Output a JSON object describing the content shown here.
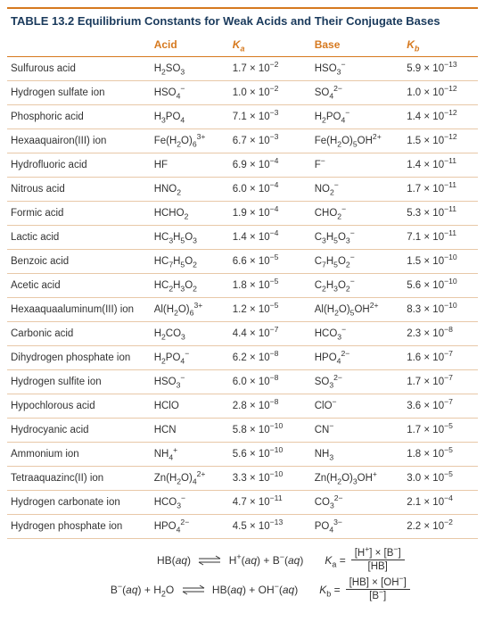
{
  "title_label": "TABLE 13.2",
  "title_text": "Equilibrium Constants for Weak Acids and Their Conjugate Bases",
  "headers": {
    "name": "",
    "acid": "Acid",
    "ka": "K",
    "ka_sub": "a",
    "base": "Base",
    "kb": "K",
    "kb_sub": "b"
  },
  "rows": [
    {
      "name": "Sulfurous acid",
      "acid": "H<sub>2</sub>SO<sub>3</sub>",
      "ka": "1.7 × 10<sup>−2</sup>",
      "base": "HSO<sub>3</sub><sup>−</sup>",
      "kb": "5.9 × 10<sup>−13</sup>"
    },
    {
      "name": "Hydrogen sulfate ion",
      "acid": "HSO<sub>4</sub><sup>−</sup>",
      "ka": "1.0 × 10<sup>−2</sup>",
      "base": "SO<sub>4</sub><sup>2−</sup>",
      "kb": "1.0 × 10<sup>−12</sup>"
    },
    {
      "name": "Phosphoric acid",
      "acid": "H<sub>3</sub>PO<sub>4</sub>",
      "ka": "7.1 × 10<sup>−3</sup>",
      "base": "H<sub>2</sub>PO<sub>4</sub><sup>−</sup>",
      "kb": "1.4 × 10<sup>−12</sup>"
    },
    {
      "name": "Hexaaquairon(III) ion",
      "acid": "Fe(H<sub>2</sub>O)<sub>6</sub><sup>3+</sup>",
      "ka": "6.7 × 10<sup>−3</sup>",
      "base": "Fe(H<sub>2</sub>O)<sub>5</sub>OH<sup>2+</sup>",
      "kb": "1.5 × 10<sup>−12</sup>"
    },
    {
      "name": "Hydrofluoric acid",
      "acid": "HF",
      "ka": "6.9 × 10<sup>−4</sup>",
      "base": "F<sup>−</sup>",
      "kb": "1.4 × 10<sup>−11</sup>"
    },
    {
      "name": "Nitrous acid",
      "acid": "HNO<sub>2</sub>",
      "ka": "6.0 × 10<sup>−4</sup>",
      "base": "NO<sub>2</sub><sup>−</sup>",
      "kb": "1.7 × 10<sup>−11</sup>"
    },
    {
      "name": "Formic acid",
      "acid": "HCHO<sub>2</sub>",
      "ka": "1.9 × 10<sup>−4</sup>",
      "base": "CHO<sub>2</sub><sup>−</sup>",
      "kb": "5.3 × 10<sup>−11</sup>"
    },
    {
      "name": "Lactic acid",
      "acid": "HC<sub>3</sub>H<sub>5</sub>O<sub>3</sub>",
      "ka": "1.4 × 10<sup>−4</sup>",
      "base": "C<sub>3</sub>H<sub>5</sub>O<sub>3</sub><sup>−</sup>",
      "kb": "7.1 × 10<sup>−11</sup>"
    },
    {
      "name": "Benzoic acid",
      "acid": "HC<sub>7</sub>H<sub>5</sub>O<sub>2</sub>",
      "ka": "6.6 × 10<sup>−5</sup>",
      "base": "C<sub>7</sub>H<sub>5</sub>O<sub>2</sub><sup>−</sup>",
      "kb": "1.5 × 10<sup>−10</sup>"
    },
    {
      "name": "Acetic acid",
      "acid": "HC<sub>2</sub>H<sub>3</sub>O<sub>2</sub>",
      "ka": "1.8 × 10<sup>−5</sup>",
      "base": "C<sub>2</sub>H<sub>3</sub>O<sub>2</sub><sup>−</sup>",
      "kb": "5.6 × 10<sup>−10</sup>"
    },
    {
      "name": "Hexaaquaaluminum(III) ion",
      "acid": "Al(H<sub>2</sub>O)<sub>6</sub><sup>3+</sup>",
      "ka": "1.2 × 10<sup>−5</sup>",
      "base": "Al(H<sub>2</sub>O)<sub>5</sub>OH<sup>2+</sup>",
      "kb": "8.3 × 10<sup>−10</sup>"
    },
    {
      "name": "Carbonic acid",
      "acid": "H<sub>2</sub>CO<sub>3</sub>",
      "ka": "4.4 × 10<sup>−7</sup>",
      "base": "HCO<sub>3</sub><sup>−</sup>",
      "kb": "2.3 × 10<sup>−8</sup>"
    },
    {
      "name": "Dihydrogen phosphate ion",
      "acid": "H<sub>2</sub>PO<sub>4</sub><sup>−</sup>",
      "ka": "6.2 × 10<sup>−8</sup>",
      "base": "HPO<sub>4</sub><sup>2−</sup>",
      "kb": "1.6 × 10<sup>−7</sup>"
    },
    {
      "name": "Hydrogen sulfite ion",
      "acid": "HSO<sub>3</sub><sup>−</sup>",
      "ka": "6.0 × 10<sup>−8</sup>",
      "base": "SO<sub>3</sub><sup>2−</sup>",
      "kb": "1.7 × 10<sup>−7</sup>"
    },
    {
      "name": "Hypochlorous acid",
      "acid": "HClO",
      "ka": "2.8 × 10<sup>−8</sup>",
      "base": "ClO<sup>−</sup>",
      "kb": "3.6 × 10<sup>−7</sup>"
    },
    {
      "name": "Hydrocyanic acid",
      "acid": "HCN",
      "ka": "5.8 × 10<sup>−10</sup>",
      "base": "CN<sup>−</sup>",
      "kb": "1.7 × 10<sup>−5</sup>"
    },
    {
      "name": "Ammonium ion",
      "acid": "NH<sub>4</sub><sup>+</sup>",
      "ka": "5.6 × 10<sup>−10</sup>",
      "base": "NH<sub>3</sub>",
      "kb": "1.8 × 10<sup>−5</sup>"
    },
    {
      "name": "Tetraaquazinc(II) ion",
      "acid": "Zn(H<sub>2</sub>O)<sub>4</sub><sup>2+</sup>",
      "ka": "3.3 × 10<sup>−10</sup>",
      "base": "Zn(H<sub>2</sub>O)<sub>3</sub>OH<sup>+</sup>",
      "kb": "3.0 × 10<sup>−5</sup>"
    },
    {
      "name": "Hydrogen carbonate ion",
      "acid": "HCO<sub>3</sub><sup>−</sup>",
      "ka": "4.7 × 10<sup>−11</sup>",
      "base": "CO<sub>3</sub><sup>2−</sup>",
      "kb": "2.1 × 10<sup>−4</sup>"
    },
    {
      "name": "Hydrogen phosphate ion",
      "acid": "HPO<sub>4</sub><sup>2−</sup>",
      "ka": "4.5 × 10<sup>−13</sup>",
      "base": "PO<sub>4</sub><sup>3−</sup>",
      "kb": "2.2 × 10<sup>−2</sup>"
    }
  ],
  "eq1": {
    "lhs": "HB(<span class=\"it\">aq</span>)",
    "rhs": "H<sup>+</sup>(<span class=\"it\">aq</span>) + B<sup>−</sup>(<span class=\"it\">aq</span>)",
    "klabel": "K",
    "ksub": "a",
    "num": "[H<sup>+</sup>] × [B<sup>−</sup>]",
    "den": "[HB]"
  },
  "eq2": {
    "lhs": "B<sup>−</sup>(<span class=\"it\">aq</span>) + H<sub>2</sub>O",
    "rhs": "HB(<span class=\"it\">aq</span>) + OH<sup>−</sup>(<span class=\"it\">aq</span>)",
    "klabel": "K",
    "ksub": "b",
    "num": "[HB] × [OH<sup>−</sup>]",
    "den": "[B<sup>−</sup>]"
  },
  "style": {
    "accent": "#d6791f",
    "title_color": "#1a3a5c",
    "row_border": "#e8c8a8"
  }
}
